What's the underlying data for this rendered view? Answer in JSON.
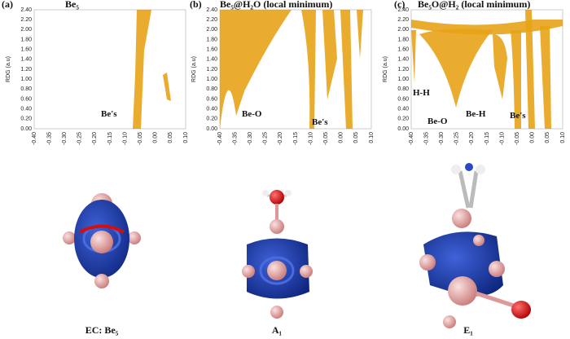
{
  "panels": [
    {
      "label": "(a)",
      "title": "Be₅",
      "y_label": "RDG (a.u)",
      "y_ticks": [
        "0.00",
        "0.20",
        "0.40",
        "0.60",
        "0.80",
        "1.00",
        "1.20",
        "1.40",
        "1.60",
        "1.80",
        "2.00",
        "2.20",
        "2.40"
      ],
      "x_ticks": [
        "-0.40",
        "-0.35",
        "-0.30",
        "-0.25",
        "-0.20",
        "-0.15",
        "-0.10",
        "-0.05",
        "0.00",
        "0.05",
        "0.10"
      ],
      "annotations": [
        "Be's"
      ]
    },
    {
      "label": "(b)",
      "title": "Be₅@H₂O (local minimum)",
      "y_label": "RDG (a.u)",
      "y_ticks": [
        "0.00",
        "0.20",
        "0.40",
        "0.60",
        "0.80",
        "1.00",
        "1.20",
        "1.40",
        "1.60",
        "1.80",
        "2.00",
        "2.20",
        "2.40"
      ],
      "x_ticks": [
        "-0.40",
        "-0.35",
        "-0.30",
        "-0.25",
        "-0.20",
        "-0.15",
        "-0.10",
        "-0.05",
        "0.00",
        "0.05",
        "0.10"
      ],
      "annotations": [
        "Be-O",
        "Be's"
      ]
    },
    {
      "label": "(c)",
      "title": "Be₅O@H₂ (local minimum)",
      "y_label": "RDG (a.u)",
      "y_ticks": [
        "0.00",
        "0.20",
        "0.40",
        "0.60",
        "0.80",
        "1.00",
        "1.20",
        "1.40",
        "1.60",
        "1.80",
        "2.00",
        "2.20",
        "2.40"
      ],
      "x_ticks": [
        "-0.40",
        "-0.35",
        "-0.30",
        "-0.25",
        "-0.20",
        "-0.15",
        "-0.10",
        "-0.05",
        "0.00",
        "0.05",
        "0.10"
      ],
      "annotations": [
        "H-H",
        "Be-O",
        "Be-H",
        "Be's"
      ]
    }
  ],
  "captions": [
    "EC: Be₅",
    "A₁",
    "E₁"
  ]
}
